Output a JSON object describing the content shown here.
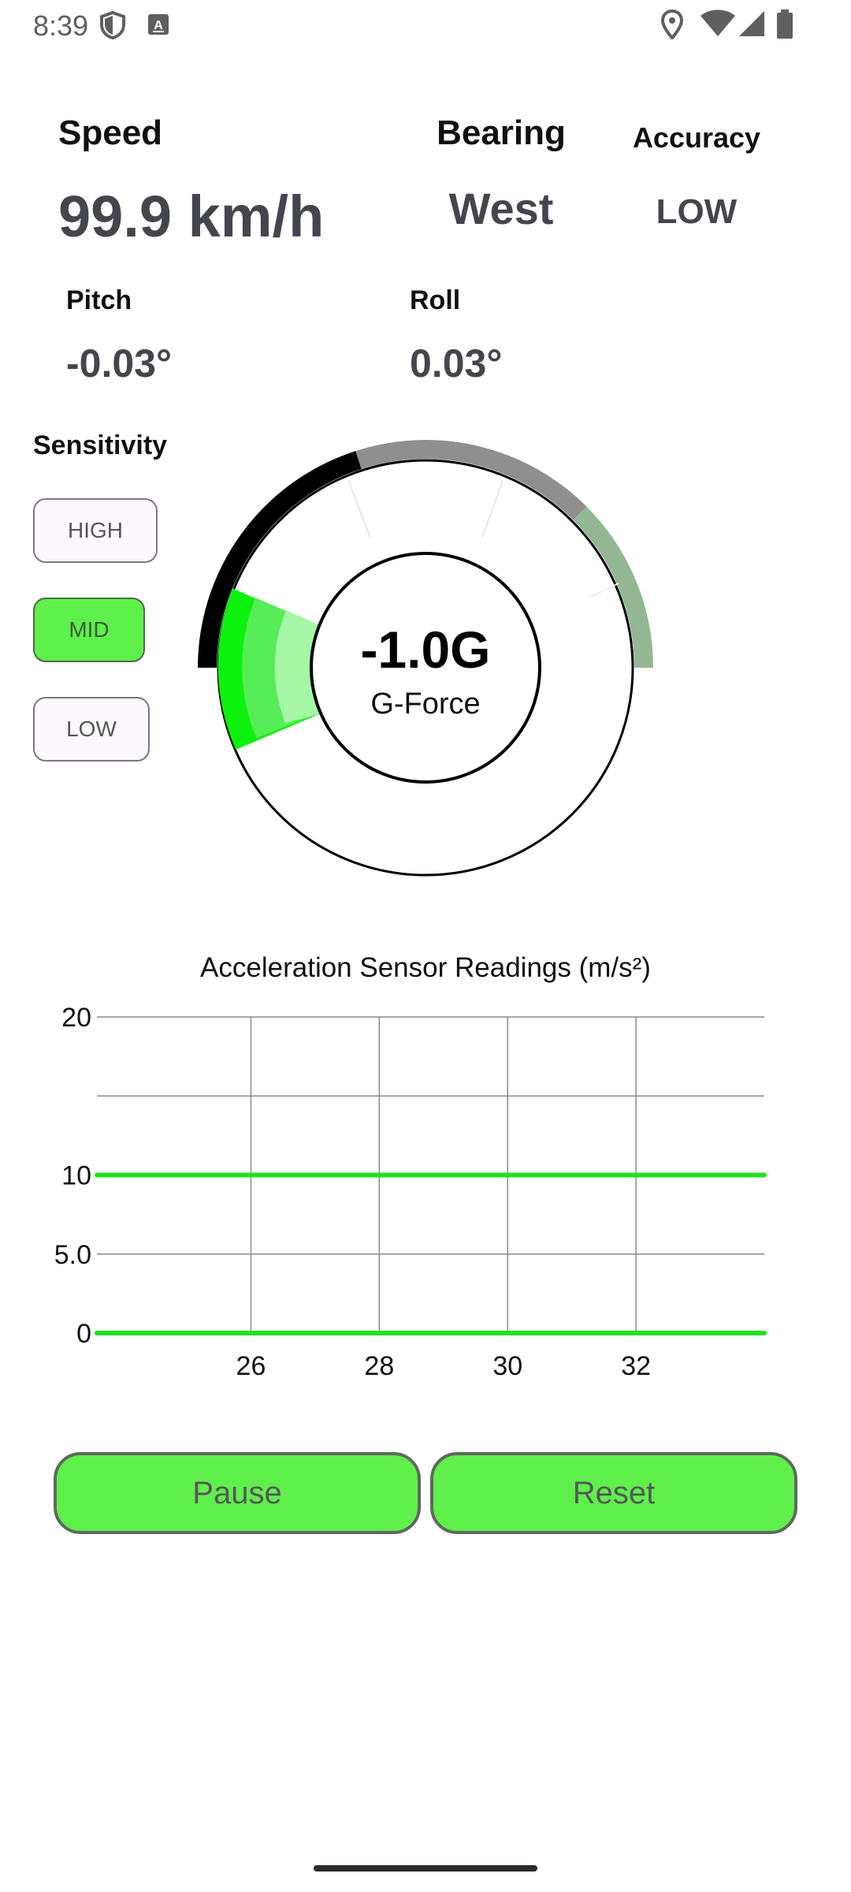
{
  "status_bar": {
    "time": "8:39",
    "left_icons": [
      "shield-icon",
      "keyboard-a-icon"
    ],
    "right_icons": [
      "location-pin-icon",
      "wifi-icon",
      "signal-icon",
      "battery-icon"
    ]
  },
  "speed": {
    "label": "Speed",
    "value": "99.9 km/h"
  },
  "bearing": {
    "label": "Bearing",
    "value": "West"
  },
  "accuracy": {
    "label": "Accuracy",
    "value": "LOW"
  },
  "pitch": {
    "label": "Pitch",
    "value": "-0.03°"
  },
  "roll": {
    "label": "Roll",
    "value": "0.03°"
  },
  "sensitivity": {
    "label": "Sensitivity",
    "options": [
      "HIGH",
      "MID",
      "LOW"
    ],
    "selected": "MID"
  },
  "gauge": {
    "value": "-1.0G",
    "label": "G-Force",
    "colors": {
      "left": "#000000",
      "top": "#8f8f8f",
      "right": "#93b893",
      "indicator": "#0cf20c"
    }
  },
  "chart_data": {
    "type": "line",
    "title": "Acceleration Sensor Readings (m/s²)",
    "x_ticks": [
      "26",
      "28",
      "30",
      "32"
    ],
    "y_ticks": [
      "20",
      "10",
      "5.0",
      "0"
    ],
    "ylim": [
      0,
      20
    ],
    "xlim": [
      23.6,
      34
    ],
    "grid": true,
    "series": [
      {
        "color": "#22e022",
        "x": [
          23.6,
          34
        ],
        "y": [
          10,
          10
        ]
      },
      {
        "color": "#22e022",
        "x": [
          23.6,
          34
        ],
        "y": [
          0,
          0
        ]
      }
    ]
  },
  "actions": {
    "pause_label": "Pause",
    "reset_label": "Reset"
  }
}
